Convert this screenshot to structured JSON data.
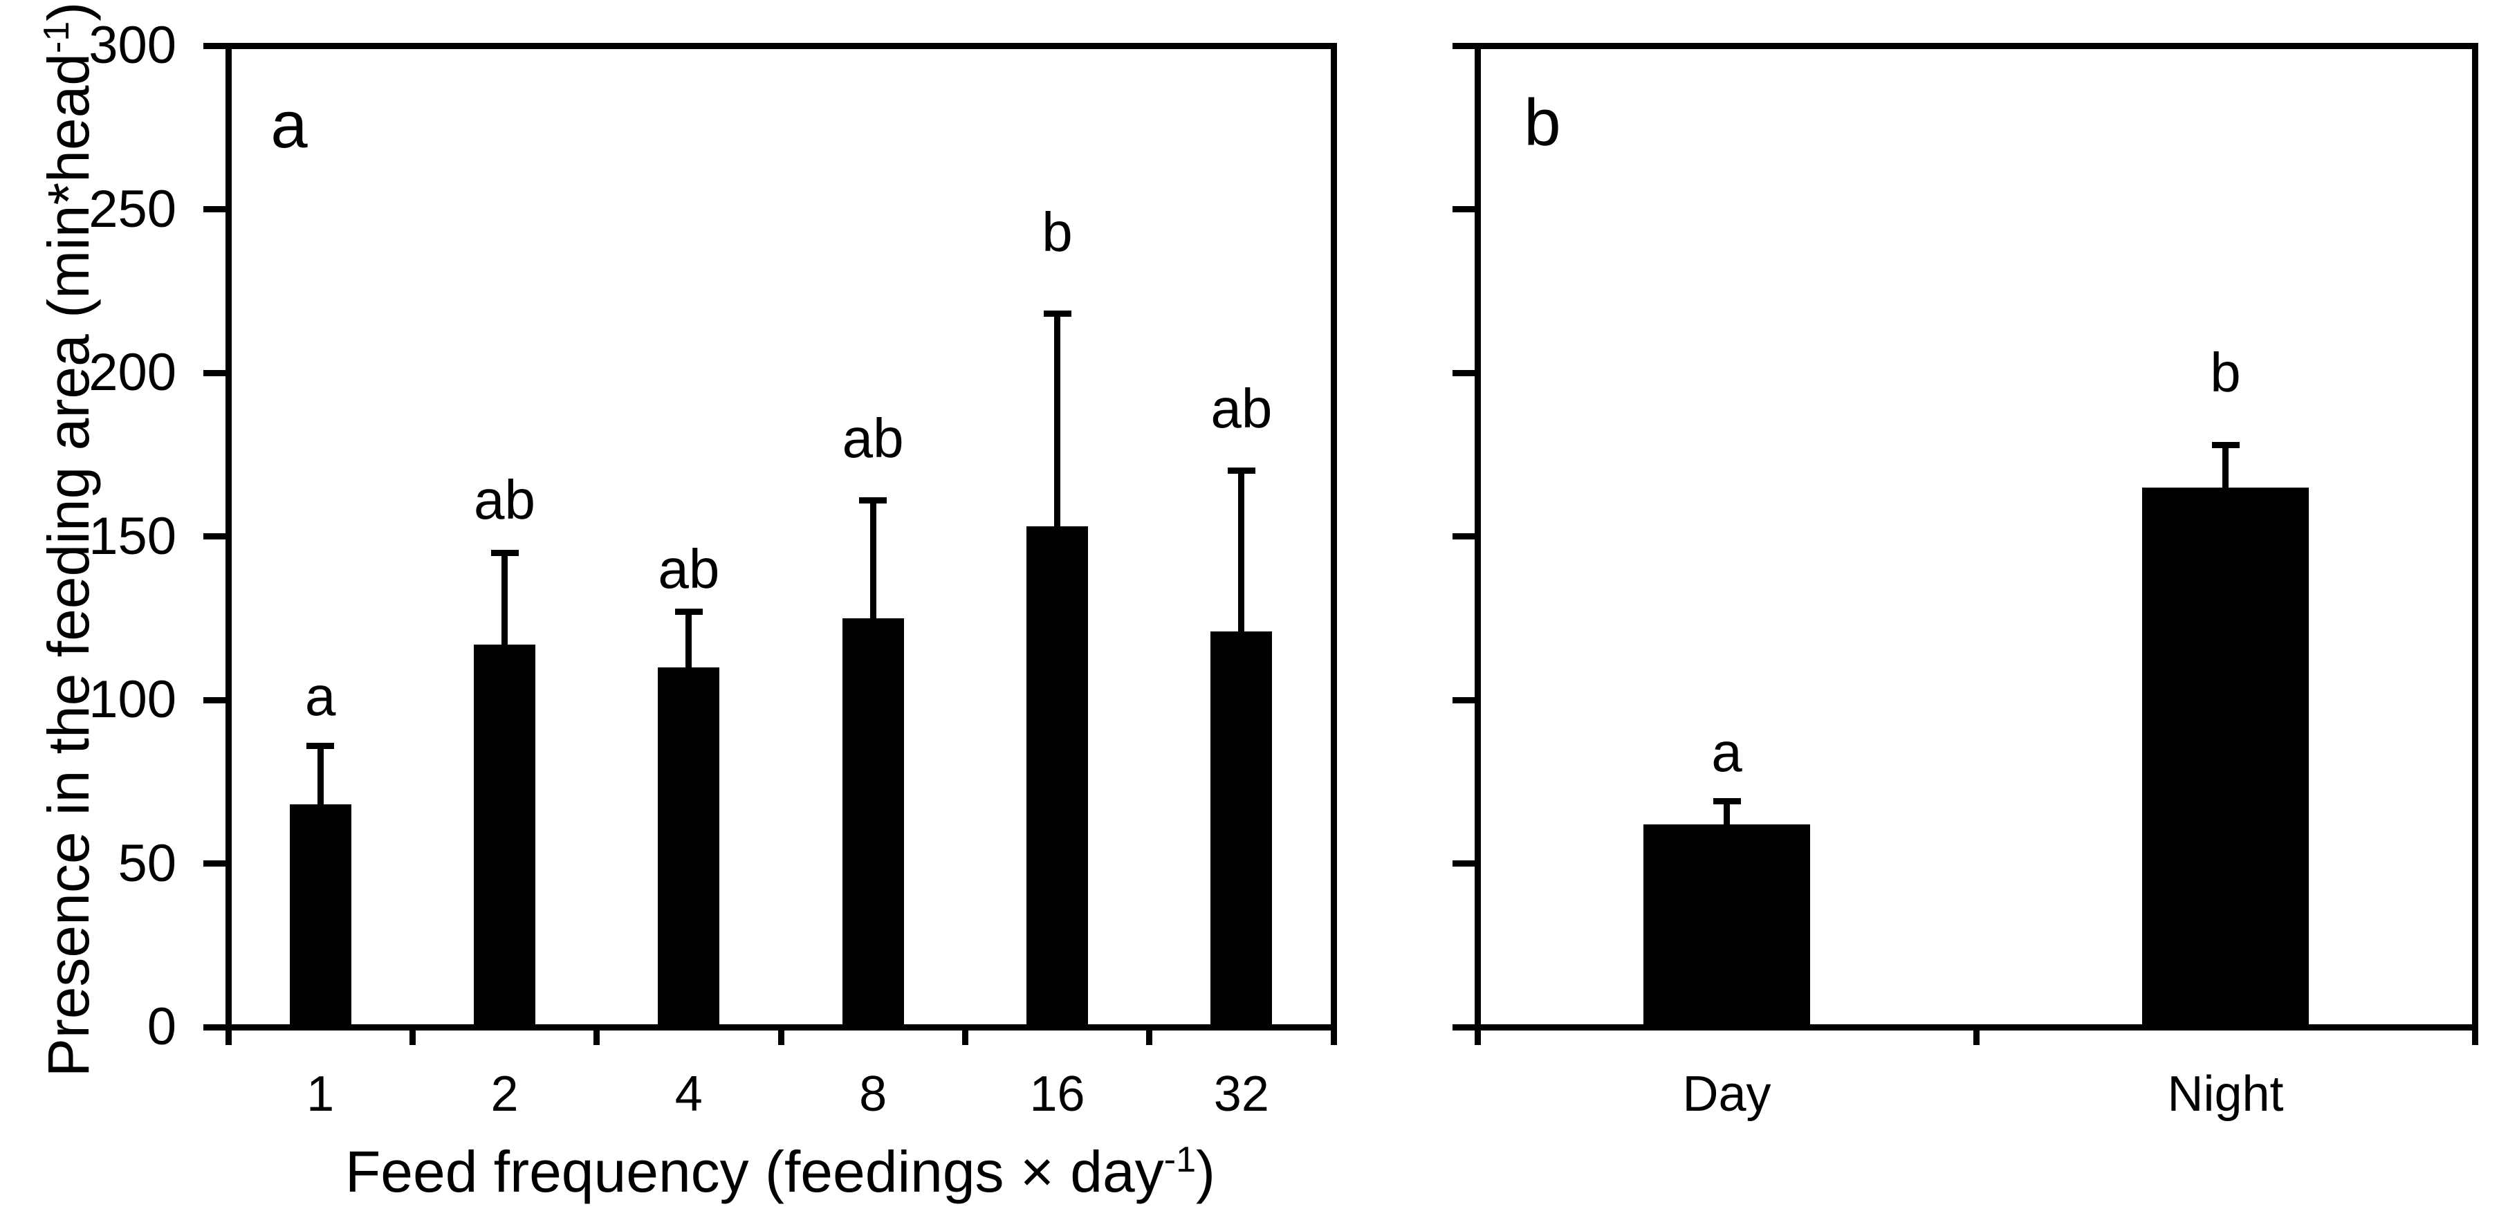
{
  "figure": {
    "background": "#ffffff",
    "axis_color": "#000000",
    "y_axis_title": {
      "full": "Presence in the feeding area (min*head⁻¹)",
      "pre": "Presence in the feeding area (min*head",
      "sup": "-1",
      "post": ")"
    },
    "x_axis_title": {
      "full": "Feed frequency (feedings × day⁻¹)",
      "pre": "Feed frequency (feedings ",
      "times": "×",
      "mid": " day",
      "sup": "-1",
      "post": ")"
    }
  },
  "chart_data": [
    {
      "type": "bar",
      "panel_label": "a",
      "categories": [
        "1",
        "2",
        "4",
        "8",
        "16",
        "32"
      ],
      "values": [
        68,
        117,
        110,
        125,
        153,
        121
      ],
      "errors_upper": [
        18,
        28,
        17,
        36,
        65,
        49
      ],
      "sig_letters": [
        "a",
        "ab",
        "ab",
        "ab",
        "b",
        "ab"
      ],
      "sig_letter_y": [
        101,
        161,
        140,
        180,
        243,
        189
      ],
      "xlabel": "Feed frequency (feedings × day⁻¹)",
      "ylabel": "Presence in the feeding area (min*head⁻¹)",
      "ylim": [
        0,
        300
      ],
      "ytick_step": 50,
      "y_tick_labels": [
        "0",
        "50",
        "100",
        "150",
        "200",
        "250",
        "300"
      ],
      "show_y_tick_labels": true,
      "grid": false,
      "legend": "none",
      "bar_color": "#000000"
    },
    {
      "type": "bar",
      "panel_label": "b",
      "categories": [
        "Day",
        "Night"
      ],
      "values": [
        62,
        165
      ],
      "errors_upper": [
        7,
        13
      ],
      "sig_letters": [
        "a",
        "b"
      ],
      "sig_letter_y": [
        84,
        200
      ],
      "xlabel": "",
      "ylabel": "",
      "ylim": [
        0,
        300
      ],
      "ytick_step": 50,
      "y_tick_labels": [],
      "show_y_tick_labels": false,
      "grid": false,
      "legend": "none",
      "bar_color": "#000000"
    }
  ]
}
